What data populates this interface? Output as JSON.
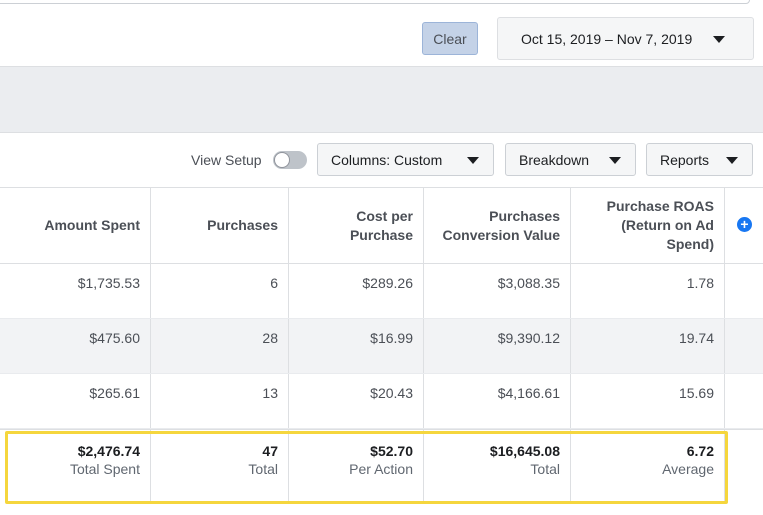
{
  "toolbar_top": {
    "clear_label": "Clear",
    "date_range": "Oct 15, 2019 – Nov 7, 2019"
  },
  "toolbar": {
    "view_setup_label": "View Setup",
    "view_setup_on": false,
    "columns_label": "Columns: Custom",
    "breakdown_label": "Breakdown",
    "reports_label": "Reports"
  },
  "table": {
    "headers": [
      "Amount Spent",
      "Purchases",
      "Cost per Purchase",
      "Purchases Conversion Value",
      "Purchase ROAS (Return on Ad Spend)"
    ],
    "rows": [
      [
        "$1,735.53",
        "6",
        "$289.26",
        "$3,088.35",
        "1.78"
      ],
      [
        "$475.60",
        "28",
        "$16.99",
        "$9,390.12",
        "19.74"
      ],
      [
        "$265.61",
        "13",
        "$20.43",
        "$4,166.61",
        "15.69"
      ]
    ],
    "totals": [
      {
        "value": "$2,476.74",
        "label": "Total Spent"
      },
      {
        "value": "47",
        "label": "Total"
      },
      {
        "value": "$52.70",
        "label": "Per Action"
      },
      {
        "value": "$16,645.08",
        "label": "Total"
      },
      {
        "value": "6.72",
        "label": "Average"
      }
    ]
  },
  "colors": {
    "highlight": "#f5d63d",
    "accent": "#1877f2"
  },
  "icons": {
    "add_column": "plus-circle-icon",
    "dropdown": "caret-down-icon"
  }
}
